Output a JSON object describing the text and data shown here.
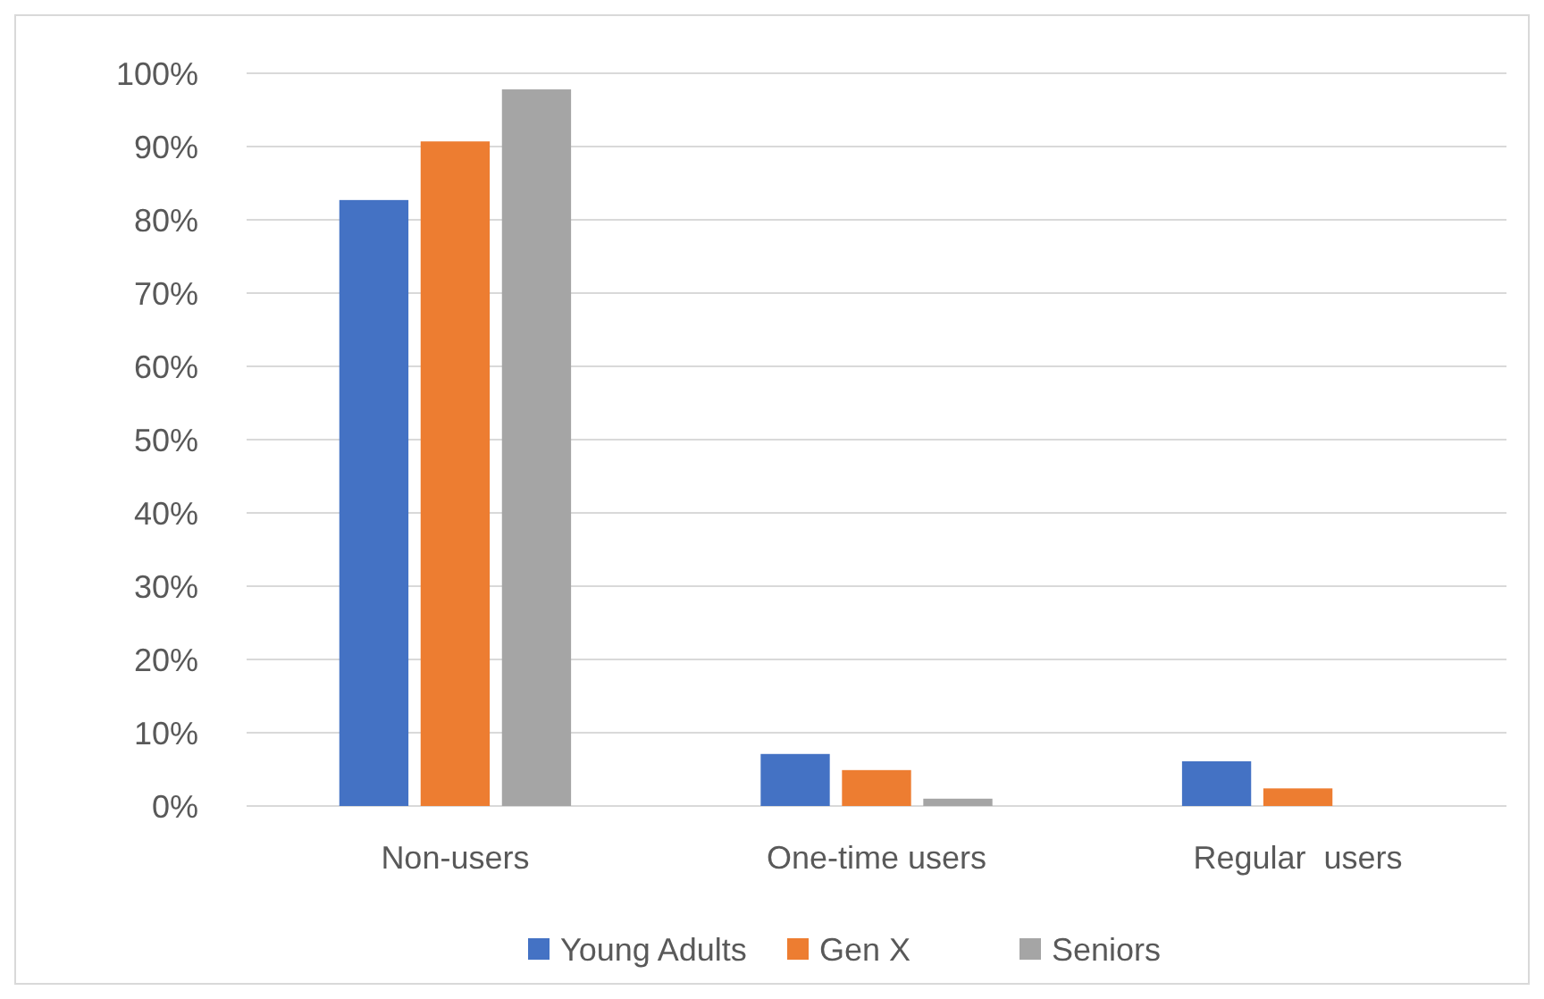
{
  "chart_data": {
    "type": "bar",
    "categories": [
      "Non-users",
      "One-time users",
      "Regular  users"
    ],
    "series": [
      {
        "name": "Young Adults",
        "color": "#4472c4",
        "values": [
          82.7,
          7.1,
          6.1
        ]
      },
      {
        "name": "Gen X",
        "color": "#ed7d31",
        "values": [
          90.7,
          4.9,
          2.4
        ]
      },
      {
        "name": "Seniors",
        "color": "#a5a5a5",
        "values": [
          97.8,
          1,
          0
        ]
      }
    ],
    "ylim": [
      0,
      100
    ],
    "yticks": [
      {
        "value": 0,
        "label": "0%"
      },
      {
        "value": 10,
        "label": "10%"
      },
      {
        "value": 20,
        "label": "20%"
      },
      {
        "value": 30,
        "label": "30%"
      },
      {
        "value": 40,
        "label": "40%"
      },
      {
        "value": 50,
        "label": "50%"
      },
      {
        "value": 60,
        "label": "60%"
      },
      {
        "value": 70,
        "label": "70%"
      },
      {
        "value": 80,
        "label": "80%"
      },
      {
        "value": 90,
        "label": "90%"
      },
      {
        "value": 100,
        "label": "100%"
      }
    ],
    "grid": "y",
    "legend": "bottom"
  }
}
